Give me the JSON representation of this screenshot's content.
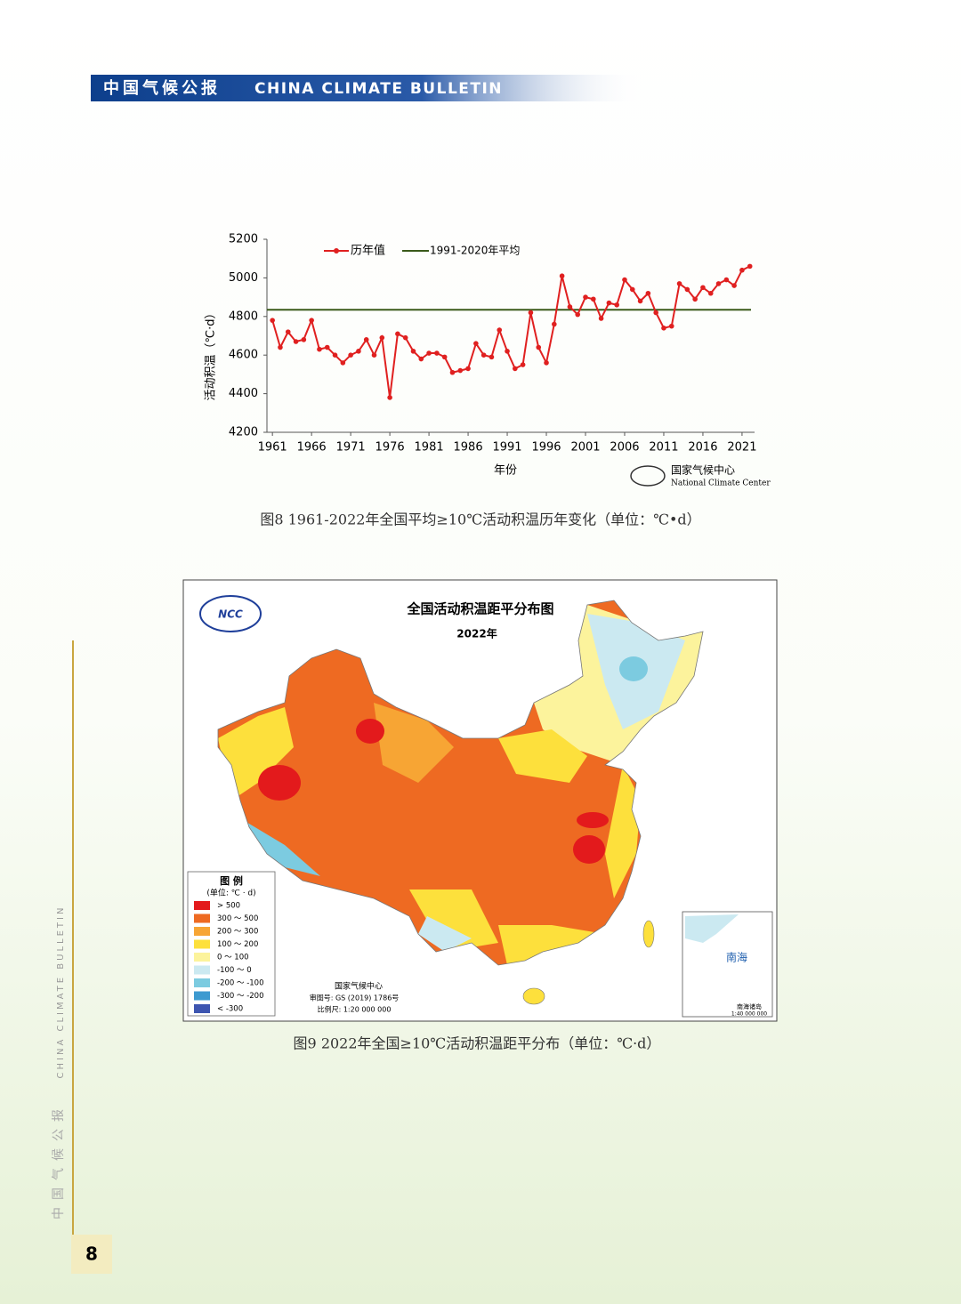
{
  "header": {
    "title_cn": "中国气候公报",
    "title_en": "CHINA CLIMATE BULLETIN"
  },
  "chart_data": {
    "type": "line",
    "x": [
      1961,
      1962,
      1963,
      1964,
      1965,
      1966,
      1967,
      1968,
      1969,
      1970,
      1971,
      1972,
      1973,
      1974,
      1975,
      1976,
      1977,
      1978,
      1979,
      1980,
      1981,
      1982,
      1983,
      1984,
      1985,
      1986,
      1987,
      1988,
      1989,
      1990,
      1991,
      1992,
      1993,
      1994,
      1995,
      1996,
      1997,
      1998,
      1999,
      2000,
      2001,
      2002,
      2003,
      2004,
      2005,
      2006,
      2007,
      2008,
      2009,
      2010,
      2011,
      2012,
      2013,
      2014,
      2015,
      2016,
      2017,
      2018,
      2019,
      2020,
      2021,
      2022
    ],
    "series": [
      {
        "name": "历年值",
        "color": "#e02020",
        "values": [
          4780,
          4640,
          4720,
          4670,
          4680,
          4780,
          4630,
          4640,
          4600,
          4560,
          4600,
          4620,
          4680,
          4600,
          4690,
          4380,
          4710,
          4690,
          4620,
          4580,
          4610,
          4610,
          4590,
          4510,
          4520,
          4530,
          4660,
          4600,
          4590,
          4730,
          4620,
          4530,
          4550,
          4820,
          4640,
          4560,
          4760,
          5010,
          4850,
          4810,
          4900,
          4890,
          4790,
          4870,
          4860,
          4990,
          4940,
          4880,
          4920,
          4820,
          4740,
          4750,
          4970,
          4940,
          4890,
          4950,
          4920,
          4970,
          4990,
          4960,
          5040,
          5060
        ]
      }
    ],
    "reference_line": {
      "name": "1991-2020年平均",
      "value": 4835,
      "color": "#3a5a1a"
    },
    "xlim": [
      1960.3,
      2022.6
    ],
    "xticks": [
      1961,
      1966,
      1971,
      1976,
      1981,
      1986,
      1991,
      1996,
      2001,
      2006,
      2011,
      2016,
      2021
    ],
    "ylim": [
      4200,
      5200
    ],
    "yticks": [
      4200,
      4400,
      4600,
      4800,
      5000,
      5200
    ],
    "x_label": "年份",
    "y_label": "活动积温（℃·d）",
    "source_cn": "国家气候中心",
    "source_en": "National Climate Center",
    "legend": "top"
  },
  "figure8_caption": "图8 1961-2022年全国平均≥10℃活动积温历年变化（单位：℃•d）",
  "map": {
    "logo": "NCC",
    "title": "全国活动积温距平分布图",
    "year": "2022年",
    "legend": {
      "title": "图 例",
      "unit": "(单位: ℃ · d)",
      "items": [
        {
          "label": "> 500",
          "color": "#e31a1c"
        },
        {
          "label": "300 ～ 500",
          "color": "#ee6a22"
        },
        {
          "label": "200 ～ 300",
          "color": "#f7a534"
        },
        {
          "label": "100 ～ 200",
          "color": "#fde03c"
        },
        {
          "label": "0 ～ 100",
          "color": "#fcf39c"
        },
        {
          "label": "-100 ～ 0",
          "color": "#cbe9f1"
        },
        {
          "label": "-200 ～ -100",
          "color": "#7ccbe0"
        },
        {
          "label": "-300 ～ -200",
          "color": "#3d9ad0"
        },
        {
          "label": "< -300",
          "color": "#3d55b0"
        }
      ]
    },
    "source": "国家气候中心",
    "approval": "审图号: GS (2019) 1786号",
    "scale": "比例尺: 1:20 000 000",
    "inset_label": "南海",
    "inset_title": "南海诸岛",
    "inset_scale": "1:40 000 000"
  },
  "figure9_caption": "图9 2022年全国≥10℃活动积温距平分布（单位：℃·d）",
  "sidebar": {
    "text_en": "CHINA CLIMATE BULLETIN",
    "text_cn": "中国气候公报"
  },
  "page_number": "8"
}
